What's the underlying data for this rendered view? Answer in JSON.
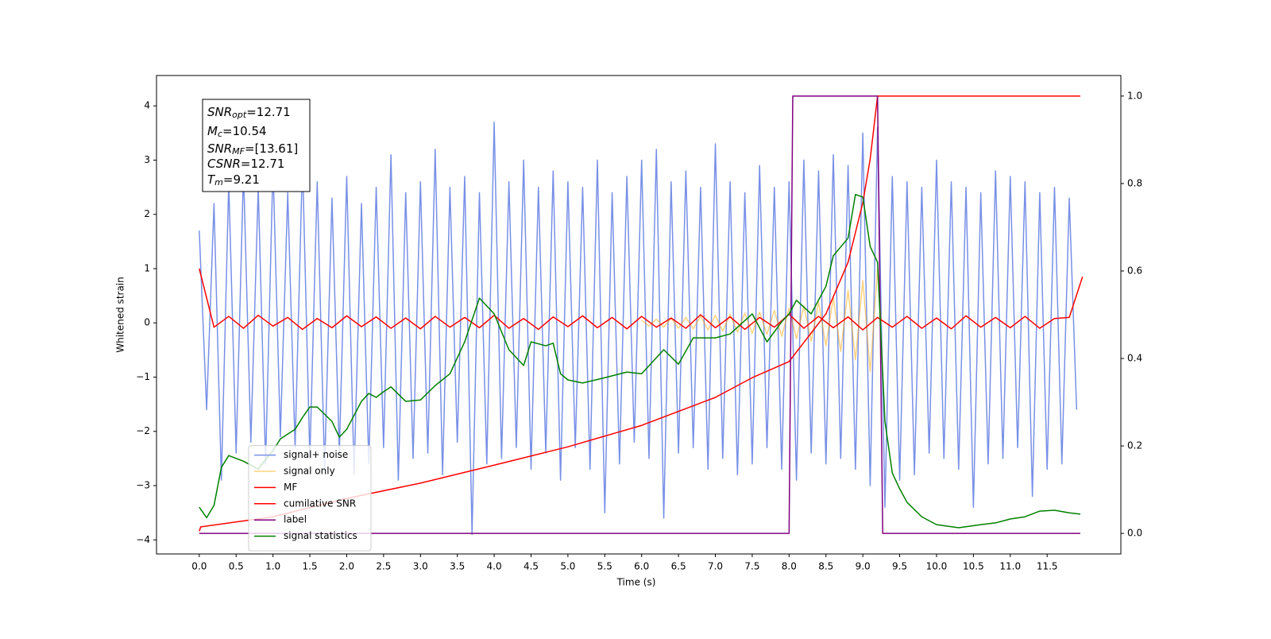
{
  "chart_data": {
    "type": "line",
    "xlabel": "Time (s)",
    "ylabel": "Whitened strain",
    "xlim": [
      -0.58,
      12.5
    ],
    "ylim": [
      -4.26,
      4.56
    ],
    "y2lim": [
      -0.047,
      1.047
    ],
    "xticks": [
      {
        "value": 0,
        "label": "0.0"
      },
      0.5,
      {
        "value": 1,
        "label": "1.0"
      },
      1.5,
      {
        "value": 2,
        "label": "2.0"
      },
      2.5,
      {
        "value": 3,
        "label": "3.0"
      },
      3.5,
      {
        "value": 4,
        "label": "4.0"
      },
      4.5,
      {
        "value": 5,
        "label": "5.0"
      },
      5.5,
      {
        "value": 6,
        "label": "6.0"
      },
      6.5,
      {
        "value": 7,
        "label": "7.0"
      },
      7.5,
      {
        "value": 8,
        "label": "8.0"
      },
      8.5,
      {
        "value": 9,
        "label": "9.0"
      },
      9.5,
      {
        "value": 10,
        "label": "10.0"
      },
      10.5,
      {
        "value": 11,
        "label": "11.0"
      },
      11.5
    ],
    "yticks": [
      {
        "value": -4,
        "label": "−4"
      },
      {
        "value": -3,
        "label": "−3"
      },
      {
        "value": -2,
        "label": "−2"
      },
      {
        "value": -1,
        "label": "−1"
      },
      0,
      1,
      2,
      3,
      4
    ],
    "y2ticks": [
      {
        "value": 0,
        "label": "0.0"
      },
      0.2,
      0.4,
      0.6,
      0.8,
      {
        "value": 1,
        "label": "1.0"
      }
    ],
    "legend": "lower left",
    "annotation": [
      {
        "main": "SNR",
        "sub": "opt",
        "rest": "=12.71"
      },
      {
        "main": "M",
        "sub": "c",
        "rest": "=10.54"
      },
      {
        "main": "SNR",
        "sub": "MF",
        "rest": "=[13.61]"
      },
      {
        "main": "CSNR",
        "sub": "",
        "rest": "=12.71"
      },
      {
        "main": "T",
        "sub": "m",
        "rest": "=9.21"
      }
    ],
    "series": [
      {
        "name": "signal+ noise",
        "color": "#7890e6",
        "alpha": 1,
        "x": [
          0.0,
          0.1,
          0.2,
          0.3,
          0.4,
          0.5,
          0.6,
          0.7,
          0.8,
          0.9,
          1.0,
          1.1,
          1.2,
          1.3,
          1.4,
          1.5,
          1.6,
          1.7,
          1.8,
          1.9,
          2.0,
          2.1,
          2.2,
          2.3,
          2.4,
          2.5,
          2.6,
          2.7,
          2.8,
          2.9,
          3.0,
          3.1,
          3.2,
          3.3,
          3.4,
          3.5,
          3.6,
          3.7,
          3.8,
          3.9,
          4.0,
          4.1,
          4.2,
          4.3,
          4.4,
          4.5,
          4.6,
          4.7,
          4.8,
          4.9,
          5.0,
          5.1,
          5.2,
          5.3,
          5.4,
          5.5,
          5.6,
          5.7,
          5.8,
          5.9,
          6.0,
          6.1,
          6.2,
          6.3,
          6.4,
          6.5,
          6.6,
          6.7,
          6.8,
          6.9,
          7.0,
          7.1,
          7.2,
          7.3,
          7.4,
          7.5,
          7.6,
          7.7,
          7.8,
          7.9,
          8.0,
          8.1,
          8.2,
          8.3,
          8.4,
          8.5,
          8.6,
          8.7,
          8.8,
          8.9,
          9.0,
          9.1,
          9.2,
          9.3,
          9.4,
          9.5,
          9.6,
          9.7,
          9.8,
          9.9,
          10.0,
          10.1,
          10.2,
          10.3,
          10.4,
          10.5,
          10.6,
          10.7,
          10.8,
          10.9,
          11.0,
          11.1,
          11.2,
          11.3,
          11.4,
          11.5,
          11.6,
          11.7,
          11.8,
          11.9
        ],
        "values": [
          1.7,
          -1.6,
          2.2,
          -2.9,
          2.6,
          -2.4,
          2.8,
          -2.2,
          2.5,
          -2.6,
          2.9,
          -2.1,
          2.4,
          -2.3,
          3.0,
          -2.5,
          2.6,
          -2.7,
          2.3,
          -2.4,
          2.7,
          -2.8,
          2.2,
          -2.6,
          2.5,
          -2.3,
          3.1,
          -2.9,
          2.4,
          -2.5,
          2.6,
          -2.4,
          3.2,
          -2.8,
          2.5,
          -2.2,
          2.7,
          -3.9,
          2.4,
          -2.6,
          3.7,
          -2.5,
          2.6,
          -2.3,
          3.0,
          -2.7,
          2.5,
          -2.4,
          2.8,
          -2.9,
          2.6,
          -2.3,
          2.5,
          -2.7,
          3.0,
          -3.5,
          2.4,
          -2.6,
          2.7,
          -2.2,
          3.0,
          -2.5,
          3.2,
          -3.6,
          2.6,
          -2.4,
          2.8,
          -2.3,
          2.5,
          -2.7,
          3.3,
          -2.5,
          2.6,
          -2.8,
          2.4,
          -2.6,
          2.9,
          -2.3,
          2.5,
          -2.7,
          2.6,
          -2.9,
          3.0,
          -2.4,
          2.8,
          -2.6,
          3.1,
          -2.5,
          2.9,
          -2.7,
          3.5,
          -3.0,
          3.6,
          -3.4,
          2.7,
          -2.9,
          2.6,
          -2.8,
          2.5,
          -2.4,
          3.0,
          -2.5,
          2.6,
          -2.7,
          2.5,
          -3.4,
          2.4,
          -2.6,
          2.8,
          -2.5,
          2.7,
          -2.3,
          2.6,
          -3.2,
          2.4,
          -2.7,
          2.5,
          -2.6,
          2.3,
          -1.6
        ]
      },
      {
        "name": "signal only",
        "color": "#ffa500",
        "alpha": 0.5,
        "x": [
          6.0,
          6.1,
          6.2,
          6.3,
          6.4,
          6.5,
          6.6,
          6.7,
          6.8,
          6.9,
          7.0,
          7.1,
          7.2,
          7.3,
          7.4,
          7.5,
          7.6,
          7.7,
          7.8,
          7.9,
          8.0,
          8.1,
          8.2,
          8.3,
          8.4,
          8.5,
          8.6,
          8.7,
          8.8,
          8.9,
          9.0,
          9.1,
          9.2,
          9.25
        ],
        "values": [
          0.05,
          -0.06,
          0.07,
          -0.08,
          0.09,
          -0.1,
          0.1,
          -0.11,
          0.12,
          -0.13,
          0.14,
          -0.15,
          0.16,
          -0.17,
          0.18,
          -0.19,
          0.2,
          -0.21,
          0.23,
          -0.25,
          0.27,
          -0.29,
          0.31,
          -0.34,
          0.38,
          -0.42,
          0.47,
          -0.53,
          0.6,
          -0.68,
          0.78,
          -0.9,
          1.0,
          0
        ]
      },
      {
        "name": "MF",
        "color": "#ff0000",
        "alpha": 1,
        "x": [
          0.0,
          0.2,
          0.4,
          0.6,
          0.8,
          1.0,
          1.2,
          1.4,
          1.6,
          1.8,
          2.0,
          2.2,
          2.4,
          2.6,
          2.8,
          3.0,
          3.2,
          3.4,
          3.6,
          3.8,
          4.0,
          4.2,
          4.4,
          4.6,
          4.8,
          5.0,
          5.2,
          5.4,
          5.6,
          5.8,
          6.0,
          6.2,
          6.4,
          6.6,
          6.8,
          7.0,
          7.2,
          7.4,
          7.6,
          7.8,
          8.0,
          8.2,
          8.4,
          8.6,
          8.8,
          9.0,
          9.2,
          9.4,
          9.6,
          9.8,
          10.0,
          10.2,
          10.4,
          10.6,
          10.8,
          11.0,
          11.2,
          11.4,
          11.6,
          11.8,
          11.98
        ],
        "values": [
          1.0,
          -0.08,
          0.12,
          -0.1,
          0.14,
          -0.06,
          0.1,
          -0.12,
          0.08,
          -0.09,
          0.13,
          -0.07,
          0.11,
          -0.1,
          0.09,
          -0.11,
          0.12,
          -0.08,
          0.1,
          -0.09,
          0.14,
          -0.1,
          0.08,
          -0.12,
          0.11,
          -0.07,
          0.13,
          -0.09,
          0.1,
          -0.11,
          0.12,
          -0.08,
          0.09,
          -0.1,
          0.15,
          -0.09,
          0.11,
          -0.12,
          0.1,
          -0.08,
          0.16,
          -0.1,
          0.12,
          -0.09,
          0.11,
          -0.13,
          0.1,
          -0.08,
          0.12,
          -0.1,
          0.09,
          -0.11,
          0.13,
          -0.08,
          0.1,
          -0.09,
          0.12,
          -0.1,
          0.08,
          0.1,
          0.85
        ]
      },
      {
        "name": "cumilative SNR",
        "color": "#ff0000",
        "alpha": 1,
        "axis": "y2",
        "x": [
          0.0,
          0.02,
          1,
          2,
          3,
          4,
          5,
          6,
          7,
          7.5,
          8,
          8.5,
          8.8,
          9.0,
          9.1,
          9.2,
          11.95
        ],
        "values": [
          0.005,
          0.015,
          0.038,
          0.08,
          0.115,
          0.156,
          0.198,
          0.247,
          0.311,
          0.356,
          0.393,
          0.502,
          0.62,
          0.756,
          0.856,
          1.0,
          1.0
        ]
      },
      {
        "name": "label",
        "color": "#800080",
        "alpha": 1,
        "axis": "y2",
        "x": [
          0.0,
          8.0,
          8.05,
          9.2,
          9.27,
          11.95
        ],
        "values": [
          0,
          0,
          1,
          1,
          0,
          0
        ]
      },
      {
        "name": "signal statistics",
        "color": "#008000",
        "alpha": 1,
        "axis": "y2",
        "x": [
          0.0,
          0.1,
          0.2,
          0.3,
          0.4,
          0.6,
          0.8,
          0.9,
          1.0,
          1.1,
          1.3,
          1.4,
          1.5,
          1.6,
          1.8,
          1.9,
          2.0,
          2.2,
          2.3,
          2.4,
          2.5,
          2.6,
          2.8,
          3.0,
          3.2,
          3.4,
          3.6,
          3.8,
          4.0,
          4.2,
          4.4,
          4.5,
          4.7,
          4.8,
          4.9,
          5.0,
          5.2,
          5.5,
          5.8,
          6.0,
          6.3,
          6.5,
          6.7,
          7.0,
          7.2,
          7.5,
          7.7,
          7.9,
          8.0,
          8.1,
          8.3,
          8.5,
          8.6,
          8.8,
          8.9,
          9.0,
          9.1,
          9.2,
          9.3,
          9.4,
          9.5,
          9.6,
          9.8,
          10.0,
          10.3,
          10.6,
          10.8,
          11.0,
          11.2,
          11.4,
          11.6,
          11.8,
          11.95
        ],
        "values": [
          0.06,
          0.036,
          0.064,
          0.151,
          0.178,
          0.165,
          0.147,
          0.169,
          0.189,
          0.216,
          0.238,
          0.265,
          0.289,
          0.289,
          0.256,
          0.22,
          0.238,
          0.302,
          0.32,
          0.311,
          0.324,
          0.335,
          0.302,
          0.305,
          0.338,
          0.365,
          0.438,
          0.538,
          0.502,
          0.42,
          0.384,
          0.438,
          0.429,
          0.435,
          0.365,
          0.351,
          0.344,
          0.356,
          0.369,
          0.365,
          0.42,
          0.387,
          0.447,
          0.447,
          0.456,
          0.502,
          0.438,
          0.484,
          0.502,
          0.533,
          0.502,
          0.565,
          0.635,
          0.675,
          0.775,
          0.769,
          0.656,
          0.62,
          0.256,
          0.138,
          0.102,
          0.071,
          0.038,
          0.02,
          0.013,
          0.02,
          0.024,
          0.033,
          0.038,
          0.051,
          0.053,
          0.047,
          0.044
        ]
      }
    ]
  }
}
